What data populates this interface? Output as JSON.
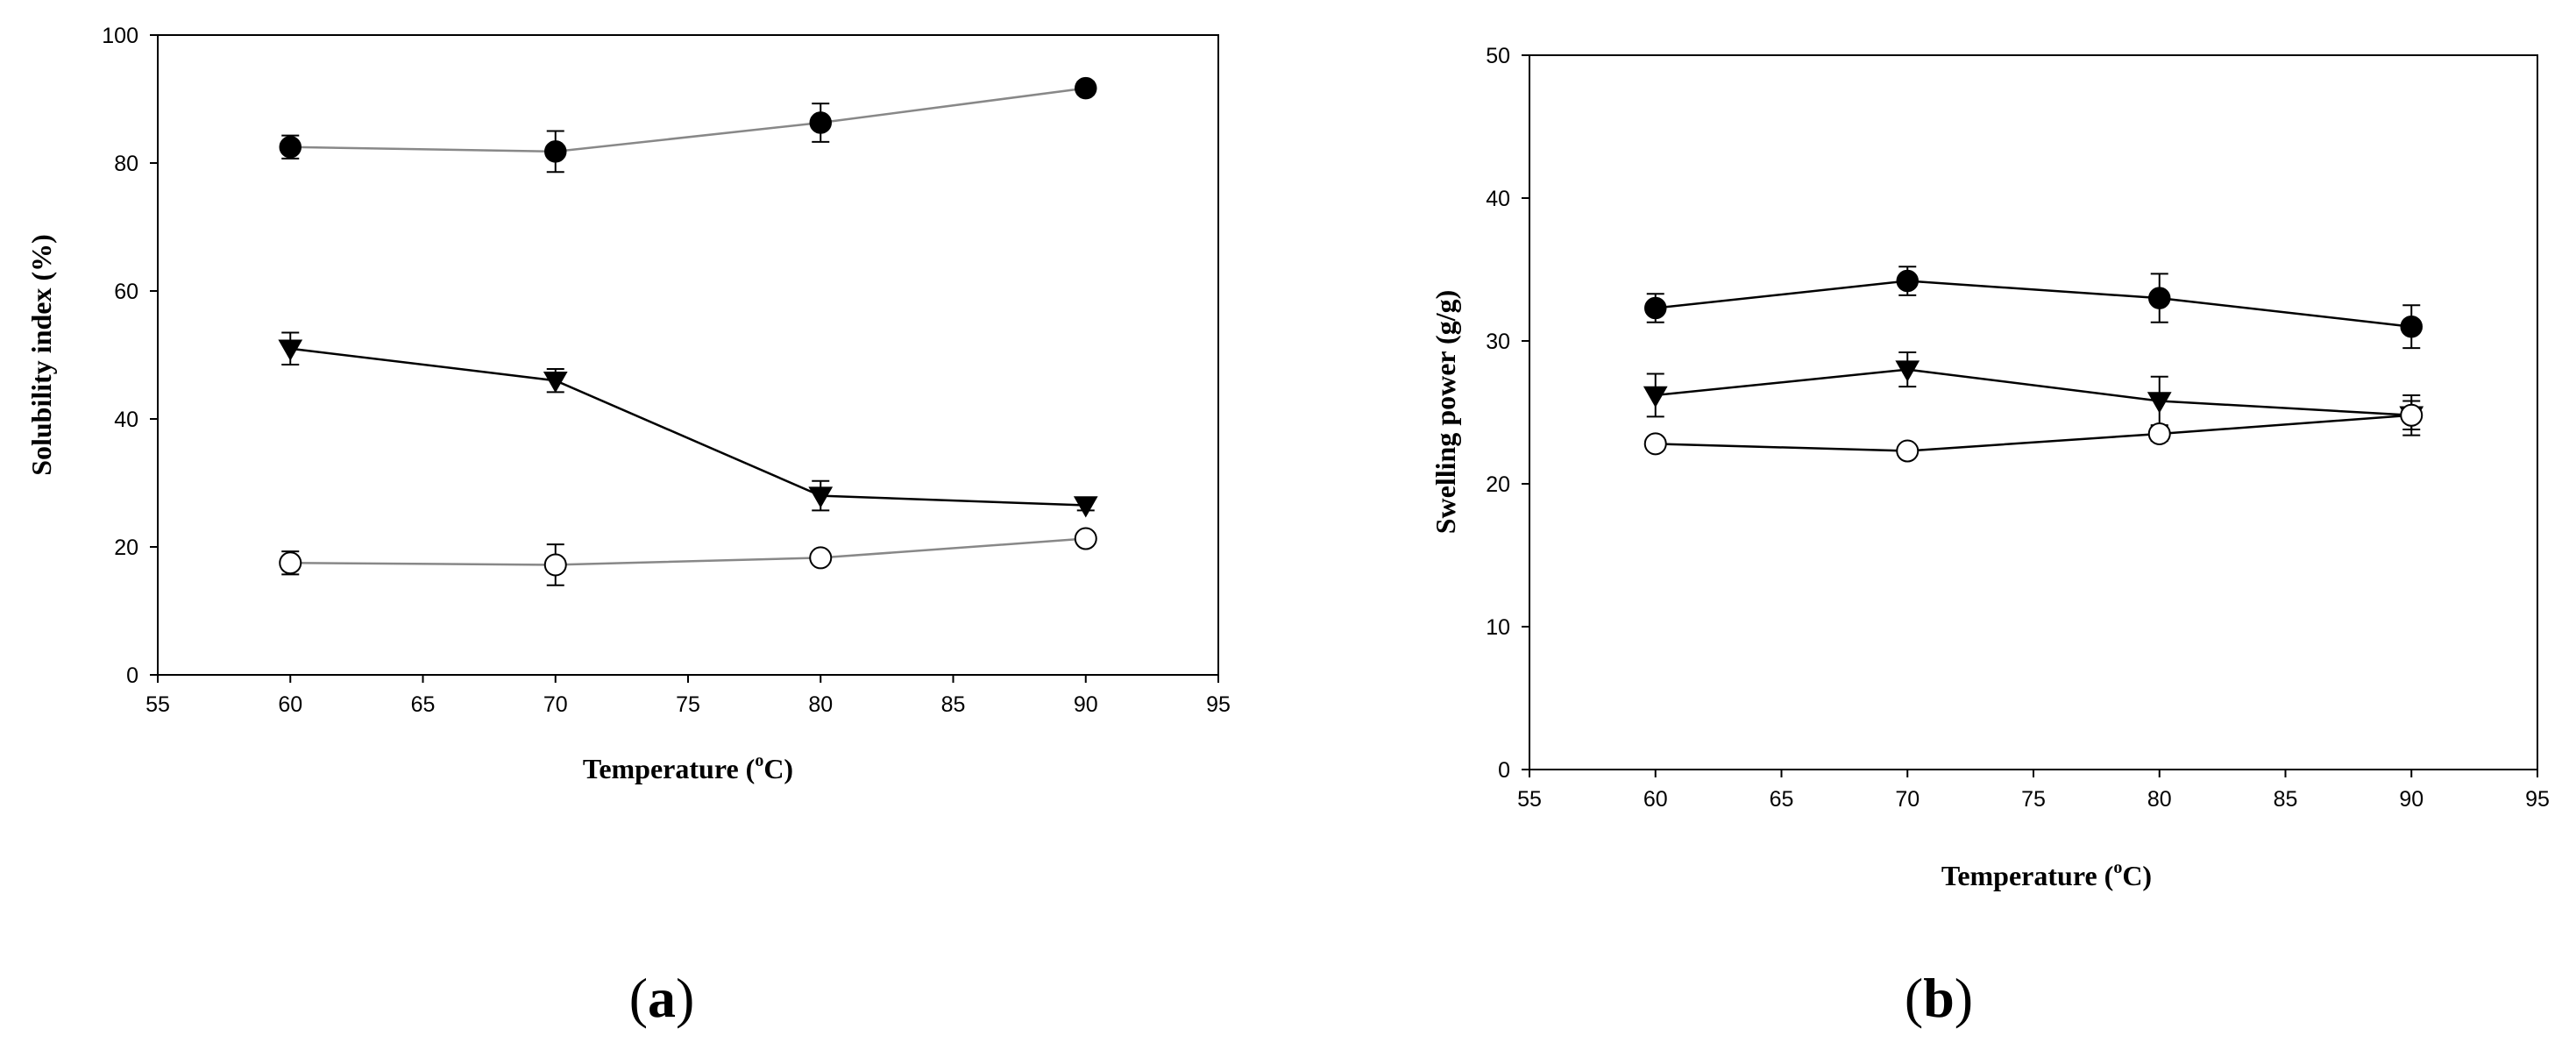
{
  "chart_data": [
    {
      "panel": "a",
      "type": "line",
      "panel_label_open": "(",
      "panel_label": "a",
      "panel_label_close": ")",
      "xlabel_main": "Temperature (",
      "xlabel_sup": "o",
      "xlabel_unit": "C)",
      "ylabel": "Solubility index (%)",
      "xlim": [
        55,
        95
      ],
      "ylim": [
        0,
        100
      ],
      "xticks": [
        55,
        60,
        65,
        70,
        75,
        80,
        85,
        90,
        95
      ],
      "yticks": [
        0,
        20,
        40,
        60,
        80,
        100
      ],
      "x": [
        60,
        70,
        80,
        90
      ],
      "series": [
        {
          "name": "filled-circle",
          "marker": "filled-circle",
          "line_color": "#888888",
          "values": [
            82.5,
            81.8,
            86.3,
            91.7
          ],
          "errors": [
            1.8,
            3.2,
            3.0,
            1.0
          ]
        },
        {
          "name": "filled-triangle",
          "marker": "filled-triangle-down",
          "line_color": "#000000",
          "values": [
            51.0,
            46.0,
            28.0,
            26.5
          ],
          "errors": [
            2.5,
            1.8,
            2.3,
            0.8
          ]
        },
        {
          "name": "open-circle",
          "marker": "open-circle",
          "line_color": "#888888",
          "values": [
            17.5,
            17.2,
            18.3,
            21.3
          ],
          "errors": [
            1.8,
            3.2,
            0.8,
            0.8
          ]
        }
      ]
    },
    {
      "panel": "b",
      "type": "line",
      "panel_label_open": "(",
      "panel_label": "b",
      "panel_label_close": ")",
      "xlabel_main": "Temperature (",
      "xlabel_sup": "o",
      "xlabel_unit": "C)",
      "ylabel": "Swelling power (g/g)",
      "xlim": [
        55,
        95
      ],
      "ylim": [
        0,
        50
      ],
      "xticks": [
        55,
        60,
        65,
        70,
        75,
        80,
        85,
        90,
        95
      ],
      "yticks": [
        0,
        10,
        20,
        30,
        40,
        50
      ],
      "x": [
        60,
        70,
        80,
        90
      ],
      "series": [
        {
          "name": "filled-circle",
          "marker": "filled-circle",
          "line_color": "#000000",
          "values": [
            32.3,
            34.2,
            33.0,
            31.0
          ],
          "errors": [
            1.0,
            1.0,
            1.7,
            1.5
          ]
        },
        {
          "name": "filled-triangle",
          "marker": "filled-triangle-down",
          "line_color": "#000000",
          "values": [
            26.2,
            28.0,
            25.8,
            24.8
          ],
          "errors": [
            1.5,
            1.2,
            1.7,
            1.0
          ]
        },
        {
          "name": "open-circle",
          "marker": "open-circle",
          "line_color": "#000000",
          "values": [
            22.8,
            22.3,
            23.5,
            24.8
          ],
          "errors": [
            0.4,
            0.4,
            0.5,
            1.4
          ]
        }
      ]
    }
  ]
}
